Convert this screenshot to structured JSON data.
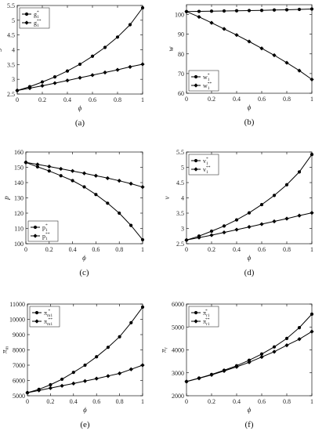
{
  "chart_data": [
    {
      "caption": "(a)",
      "type": "line",
      "ylabel": "g",
      "xlabel": "ϕ",
      "xlim": [
        0,
        1
      ],
      "ylim": [
        2.5,
        5.5
      ],
      "xticks": [
        "0",
        "0.2",
        "0.4",
        "0.6",
        "0.8",
        "1"
      ],
      "yticks": [
        "2.5",
        "3",
        "3.5",
        "4",
        "4.5",
        "5",
        "5.5"
      ],
      "ytick_values": [
        2.5,
        3,
        3.5,
        4,
        4.5,
        5,
        5.5
      ],
      "legend": "top-left",
      "series": [
        {
          "name": "g1*",
          "base": "g",
          "sub": "1",
          "sup": "*",
          "marker": "circle",
          "x": [
            0,
            0.1,
            0.2,
            0.3,
            0.4,
            0.5,
            0.6,
            0.7,
            0.8,
            0.9,
            1
          ],
          "y": [
            2.62,
            2.75,
            2.91,
            3.08,
            3.28,
            3.51,
            3.78,
            4.08,
            4.43,
            4.85,
            5.42
          ]
        },
        {
          "name": "g1**",
          "base": "g",
          "sub": "1",
          "sup": "**",
          "marker": "diamond",
          "x": [
            0,
            0.1,
            0.2,
            0.3,
            0.4,
            0.5,
            0.6,
            0.7,
            0.8,
            0.9,
            1
          ],
          "y": [
            2.62,
            2.7,
            2.78,
            2.87,
            2.96,
            3.05,
            3.14,
            3.23,
            3.32,
            3.42,
            3.51
          ]
        }
      ]
    },
    {
      "caption": "(b)",
      "type": "line",
      "ylabel": "w",
      "xlabel": "ϕ",
      "xlim": [
        0,
        1
      ],
      "ylim": [
        60,
        105
      ],
      "xticks": [
        "0",
        "0.2",
        "0.4",
        "0.6",
        "0.8",
        "1"
      ],
      "yticks": [
        "60",
        "70",
        "80",
        "90",
        "100"
      ],
      "ytick_values": [
        60,
        70,
        80,
        90,
        100
      ],
      "legend": "bottom-left",
      "series": [
        {
          "name": "w1*",
          "base": "w",
          "sub": "1",
          "sup": "*",
          "marker": "circle",
          "x": [
            0,
            0.1,
            0.2,
            0.3,
            0.4,
            0.5,
            0.6,
            0.7,
            0.8,
            0.9,
            1
          ],
          "y": [
            101.5,
            101.6,
            101.7,
            101.8,
            101.9,
            102.0,
            102.1,
            102.3,
            102.4,
            102.6,
            102.8
          ]
        },
        {
          "name": "w1**",
          "base": "w",
          "sub": "1",
          "sup": "**",
          "marker": "diamond",
          "x": [
            0,
            0.1,
            0.2,
            0.3,
            0.4,
            0.5,
            0.6,
            0.7,
            0.8,
            0.9,
            1
          ],
          "y": [
            101.5,
            98.8,
            95.8,
            92.7,
            89.6,
            86.3,
            82.8,
            79.3,
            75.5,
            71.5,
            67.0
          ]
        }
      ]
    },
    {
      "caption": "(c)",
      "type": "line",
      "ylabel": "p",
      "xlabel": "ϕ",
      "xlim": [
        0,
        1
      ],
      "ylim": [
        100,
        160
      ],
      "xticks": [
        "0",
        "0.2",
        "0.4",
        "0.6",
        "0.8",
        "1"
      ],
      "yticks": [
        "100",
        "110",
        "120",
        "130",
        "140",
        "150",
        "160"
      ],
      "ytick_values": [
        100,
        110,
        120,
        130,
        140,
        150,
        160
      ],
      "legend": "bottom-left",
      "series": [
        {
          "name": "p1*",
          "base": "p",
          "sub": "1",
          "sup": "*",
          "marker": "circle",
          "x": [
            0,
            0.1,
            0.2,
            0.3,
            0.4,
            0.5,
            0.6,
            0.7,
            0.8,
            0.9,
            1
          ],
          "y": [
            153.2,
            150.3,
            147.6,
            144.5,
            141.3,
            137.2,
            132.2,
            126.5,
            120.0,
            112.0,
            102.6
          ]
        },
        {
          "name": "p1**",
          "base": "p",
          "sub": "1",
          "sup": "**",
          "marker": "diamond",
          "x": [
            0,
            0.1,
            0.2,
            0.3,
            0.4,
            0.5,
            0.6,
            0.7,
            0.8,
            0.9,
            1
          ],
          "y": [
            153.2,
            151.9,
            150.5,
            149.0,
            147.6,
            146.1,
            144.5,
            142.9,
            141.2,
            139.3,
            137.1
          ]
        }
      ]
    },
    {
      "caption": "(d)",
      "type": "line",
      "ylabel": "v",
      "xlabel": "ϕ",
      "xlim": [
        0,
        1
      ],
      "ylim": [
        2.5,
        5.5
      ],
      "xticks": [
        "0",
        "0.2",
        "0.4",
        "0.6",
        "0.8",
        "1"
      ],
      "yticks": [
        "2.5",
        "3",
        "3.5",
        "4",
        "4.5",
        "5",
        "5.5"
      ],
      "ytick_values": [
        2.5,
        3,
        3.5,
        4,
        4.5,
        5,
        5.5
      ],
      "legend": "top-left",
      "series": [
        {
          "name": "v1*",
          "base": "v",
          "sub": "1",
          "sup": "*",
          "marker": "circle",
          "x": [
            0,
            0.1,
            0.2,
            0.3,
            0.4,
            0.5,
            0.6,
            0.7,
            0.8,
            0.9,
            1
          ],
          "y": [
            2.62,
            2.75,
            2.91,
            3.08,
            3.28,
            3.51,
            3.78,
            4.08,
            4.43,
            4.85,
            5.42
          ]
        },
        {
          "name": "v1**",
          "base": "v",
          "sub": "1",
          "sup": "**",
          "marker": "diamond",
          "x": [
            0,
            0.1,
            0.2,
            0.3,
            0.4,
            0.5,
            0.6,
            0.7,
            0.8,
            0.9,
            1
          ],
          "y": [
            2.62,
            2.7,
            2.78,
            2.87,
            2.96,
            3.05,
            3.14,
            3.23,
            3.32,
            3.42,
            3.51
          ]
        }
      ]
    },
    {
      "caption": "(e)",
      "type": "line",
      "ylabel": "πm",
      "xlabel": "ϕ",
      "xlim": [
        0,
        1
      ],
      "ylim": [
        5000,
        11000
      ],
      "xticks": [
        "0",
        "0.2",
        "0.4",
        "0.6",
        "0.8",
        "1"
      ],
      "yticks": [
        "5000",
        "6000",
        "7000",
        "8000",
        "9000",
        "10000",
        "11000"
      ],
      "ytick_values": [
        5000,
        6000,
        7000,
        8000,
        9000,
        10000,
        11000
      ],
      "legend": "top-left",
      "series": [
        {
          "name": "πm1*",
          "base": "π",
          "sub": "m1",
          "sup": "*",
          "marker": "circle",
          "x": [
            0,
            0.1,
            0.2,
            0.3,
            0.4,
            0.5,
            0.6,
            0.7,
            0.8,
            0.9,
            1
          ],
          "y": [
            5200,
            5420,
            5720,
            6080,
            6530,
            7000,
            7550,
            8170,
            8860,
            9780,
            10800
          ]
        },
        {
          "name": "πm1**",
          "base": "π",
          "sub": "m1",
          "sup": "**",
          "marker": "diamond",
          "x": [
            0,
            0.1,
            0.2,
            0.3,
            0.4,
            0.5,
            0.6,
            0.7,
            0.8,
            0.9,
            1
          ],
          "y": [
            5200,
            5350,
            5500,
            5650,
            5800,
            5960,
            6120,
            6290,
            6460,
            6730,
            7000
          ]
        }
      ]
    },
    {
      "caption": "(f)",
      "type": "line",
      "ylabel": "πr",
      "xlabel": "ϕ",
      "xlim": [
        0,
        1
      ],
      "ylim": [
        2000,
        6000
      ],
      "xticks": [
        "0",
        "0.2",
        "0.4",
        "0.6",
        "0.8",
        "1"
      ],
      "yticks": [
        "2000",
        "3000",
        "4000",
        "5000",
        "6000"
      ],
      "ytick_values": [
        2000,
        3000,
        4000,
        5000,
        6000
      ],
      "legend": "top-left",
      "series": [
        {
          "name": "πr1*",
          "base": "π",
          "sub": "r1",
          "sup": "*",
          "marker": "circle",
          "x": [
            0,
            0.1,
            0.2,
            0.3,
            0.4,
            0.5,
            0.6,
            0.7,
            0.8,
            0.9,
            1
          ],
          "y": [
            2620,
            2770,
            2930,
            3110,
            3310,
            3550,
            3820,
            4130,
            4500,
            4970,
            5560
          ]
        },
        {
          "name": "πr1**",
          "base": "π",
          "sub": "r1",
          "sup": "**",
          "marker": "diamond",
          "x": [
            0,
            0.1,
            0.2,
            0.3,
            0.4,
            0.5,
            0.6,
            0.7,
            0.8,
            0.9,
            1
          ],
          "y": [
            2620,
            2760,
            2910,
            3080,
            3260,
            3460,
            3690,
            3920,
            4200,
            4470,
            4800
          ]
        }
      ]
    }
  ]
}
